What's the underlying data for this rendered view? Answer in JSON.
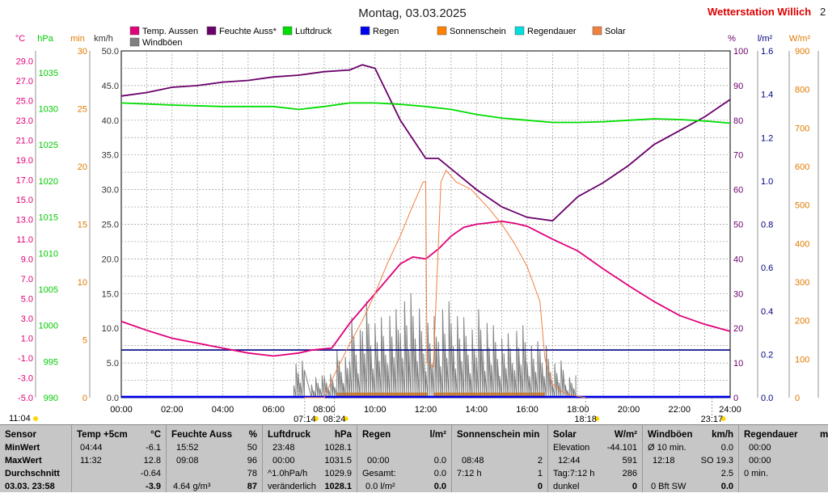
{
  "header": {
    "title": "Montag, 03.03.2025",
    "station": "Wetterstation Willich",
    "right_cut": "2"
  },
  "chart_data": {
    "type": "line",
    "x_range": [
      "00:00",
      "24:00"
    ],
    "x_ticks": [
      "00:00",
      "02:00",
      "04:00",
      "06:00",
      "08:00",
      "10:00",
      "12:00",
      "14:00",
      "16:00",
      "18:00",
      "20:00",
      "22:00",
      "24:00"
    ],
    "axes": {
      "temp": {
        "unit": "°C",
        "min": -5,
        "max": 30,
        "ticks": [
          "-5.0",
          "-3.0",
          "-1.0",
          "1.0",
          "3.0",
          "5.0",
          "7.0",
          "9.0",
          "11.0",
          "13.0",
          "15.0",
          "17.0",
          "19.0",
          "21.0",
          "23.0",
          "25.0",
          "27.0",
          "29.0"
        ],
        "color": "#e0007a"
      },
      "pressure": {
        "unit": "hPa",
        "min": 990,
        "max": 1038,
        "ticks": [
          "990",
          "995",
          "1000",
          "1005",
          "1010",
          "1015",
          "1020",
          "1025",
          "1030",
          "1035"
        ],
        "color": "#00cc00"
      },
      "minutes": {
        "unit": "min",
        "min": 0,
        "max": 30,
        "ticks": [
          "0",
          "5",
          "10",
          "15",
          "20",
          "25",
          "30"
        ],
        "color": "#e07a00"
      },
      "wind": {
        "unit": "km/h",
        "min": 0,
        "max": 50,
        "ticks": [
          "0.0",
          "5.0",
          "10.0",
          "15.0",
          "20.0",
          "25.0",
          "30.0",
          "35.0",
          "40.0",
          "45.0",
          "50.0"
        ],
        "color": "#333333"
      },
      "humidity": {
        "unit": "%",
        "min": 0,
        "max": 100,
        "ticks": [
          "0",
          "10",
          "20",
          "30",
          "40",
          "50",
          "60",
          "70",
          "80",
          "90",
          "100"
        ],
        "color": "#6a006a"
      },
      "rain": {
        "unit": "l/m²",
        "min": 0,
        "max": 1.6,
        "ticks": [
          "0.0",
          "0.2",
          "0.4",
          "0.6",
          "0.8",
          "1.0",
          "1.2",
          "1.4",
          "1.6"
        ],
        "color": "#000080"
      },
      "solar": {
        "unit": "W/m²",
        "min": 0,
        "max": 900,
        "ticks": [
          "0",
          "100",
          "200",
          "300",
          "400",
          "500",
          "600",
          "700",
          "800",
          "900"
        ],
        "color": "#e07a00"
      }
    },
    "legend": [
      {
        "name": "Temp. Aussen",
        "color": "#e0007a"
      },
      {
        "name": "Feuchte Auss*",
        "color": "#6a006a"
      },
      {
        "name": "Luftdruck",
        "color": "#00dd00"
      },
      {
        "name": "Regen",
        "color": "#0000ee"
      },
      {
        "name": "Sonnenschein",
        "color": "#ff8000"
      },
      {
        "name": "Regendauer",
        "color": "#00dddd"
      },
      {
        "name": "Solar",
        "color": "#f08040"
      },
      {
        "name": "Windböen",
        "color": "#808080"
      }
    ],
    "series": [
      {
        "name": "Temp. Aussen",
        "axis": "temp",
        "points": [
          [
            0,
            2.7
          ],
          [
            1,
            1.8
          ],
          [
            2,
            1.0
          ],
          [
            3,
            0.5
          ],
          [
            4,
            0.0
          ],
          [
            5,
            -0.5
          ],
          [
            6,
            -0.8
          ],
          [
            7,
            -0.5
          ],
          [
            7.5,
            -0.2
          ],
          [
            8.3,
            0.0
          ],
          [
            9,
            2.5
          ],
          [
            10,
            5.5
          ],
          [
            11,
            8.5
          ],
          [
            11.5,
            9.2
          ],
          [
            12,
            9.0
          ],
          [
            12.5,
            10.0
          ],
          [
            13,
            11.3
          ],
          [
            13.5,
            12.2
          ],
          [
            14,
            12.5
          ],
          [
            15,
            12.8
          ],
          [
            15.5,
            12.6
          ],
          [
            16,
            12.3
          ],
          [
            17,
            11.0
          ],
          [
            18,
            9.8
          ],
          [
            19,
            8.0
          ],
          [
            20,
            6.3
          ],
          [
            21,
            4.7
          ],
          [
            22,
            3.3
          ],
          [
            23,
            2.4
          ],
          [
            24,
            1.7
          ]
        ]
      },
      {
        "name": "Feuchte Auss*",
        "axis": "humidity",
        "points": [
          [
            0,
            87
          ],
          [
            1,
            88
          ],
          [
            2,
            89.5
          ],
          [
            3,
            90
          ],
          [
            4,
            91
          ],
          [
            5,
            91.5
          ],
          [
            6,
            92.5
          ],
          [
            7,
            93
          ],
          [
            8,
            94
          ],
          [
            9,
            94.5
          ],
          [
            9.5,
            96
          ],
          [
            10,
            95
          ],
          [
            11,
            80
          ],
          [
            12,
            69
          ],
          [
            12.5,
            69
          ],
          [
            13,
            66
          ],
          [
            14,
            60
          ],
          [
            15,
            55
          ],
          [
            16,
            52
          ],
          [
            17,
            51
          ],
          [
            18,
            58
          ],
          [
            19,
            62
          ],
          [
            20,
            67
          ],
          [
            21,
            73
          ],
          [
            22,
            77
          ],
          [
            23,
            81
          ],
          [
            24,
            86
          ]
        ]
      },
      {
        "name": "Luftdruck",
        "axis": "pressure",
        "points": [
          [
            0,
            1030.8
          ],
          [
            2,
            1030.5
          ],
          [
            4,
            1030.3
          ],
          [
            6,
            1030.3
          ],
          [
            7,
            1029.9
          ],
          [
            8,
            1030.3
          ],
          [
            9,
            1030.8
          ],
          [
            10,
            1030.8
          ],
          [
            11,
            1030.6
          ],
          [
            12,
            1030.3
          ],
          [
            13,
            1029.9
          ],
          [
            14,
            1029.2
          ],
          [
            15,
            1028.7
          ],
          [
            16,
            1028.4
          ],
          [
            17,
            1028.1
          ],
          [
            18,
            1028.1
          ],
          [
            19,
            1028.2
          ],
          [
            20,
            1028.4
          ],
          [
            21,
            1028.6
          ],
          [
            22,
            1028.5
          ],
          [
            23,
            1028.3
          ],
          [
            24,
            1028.0
          ]
        ]
      },
      {
        "name": "Solar",
        "axis": "solar",
        "points": [
          [
            7.2,
            0
          ],
          [
            8.0,
            0
          ],
          [
            8.4,
            60
          ],
          [
            9,
            140
          ],
          [
            9.5,
            200
          ],
          [
            10,
            270
          ],
          [
            10.5,
            350
          ],
          [
            11,
            420
          ],
          [
            11.5,
            500
          ],
          [
            11.9,
            560
          ],
          [
            12,
            560
          ],
          [
            12.05,
            90
          ],
          [
            12.3,
            80
          ],
          [
            12.5,
            400
          ],
          [
            12.6,
            560
          ],
          [
            12.8,
            590
          ],
          [
            13.2,
            560
          ],
          [
            13.8,
            540
          ],
          [
            14.5,
            490
          ],
          [
            15,
            450
          ],
          [
            15.5,
            400
          ],
          [
            16,
            340
          ],
          [
            16.5,
            250
          ],
          [
            16.7,
            100
          ],
          [
            17,
            35
          ],
          [
            17.5,
            10
          ],
          [
            18.3,
            0
          ]
        ]
      }
    ],
    "wind_gusts": [
      [
        6.8,
        5
      ],
      [
        7.5,
        3
      ],
      [
        8,
        3.5
      ],
      [
        8.5,
        6
      ],
      [
        9,
        10
      ],
      [
        9.5,
        12
      ],
      [
        10,
        10
      ],
      [
        10.5,
        11
      ],
      [
        11,
        13
      ],
      [
        11.5,
        12
      ],
      [
        12,
        11
      ],
      [
        12.5,
        13
      ],
      [
        13,
        12
      ],
      [
        13.5,
        10
      ],
      [
        14,
        11
      ],
      [
        14.5,
        9
      ],
      [
        15,
        8
      ],
      [
        15.5,
        9
      ],
      [
        16,
        7
      ],
      [
        16.5,
        7
      ],
      [
        17,
        5
      ],
      [
        17.5,
        3
      ]
    ],
    "sunshine_blocks": [
      [
        8.5,
        12.1
      ],
      [
        12.3,
        16.7
      ]
    ],
    "rain_level": 0.22,
    "markers": [
      {
        "label": "07:14",
        "x": 7.23
      },
      {
        "label": "08:24",
        "x": 8.4
      },
      {
        "label": "18:18",
        "x": 18.3
      },
      {
        "label": "23:17",
        "x": 23.28
      }
    ],
    "bottom_left_time": "11:04",
    "grid": true
  },
  "table": {
    "sensor": {
      "header": "Sensor",
      "min": "MinWert",
      "max": "MaxWert",
      "avg": "Durchschnitt",
      "cur": "03.03. 23:58"
    },
    "temp": {
      "header": "Temp +5cm",
      "unit": "°C",
      "min_time": "04:44",
      "min_val": "-6.1",
      "max_time": "11:32",
      "max_val": "12.8",
      "avg_val": "-0.64",
      "cur_val": "-3.9"
    },
    "hum": {
      "header": "Feuchte Auss",
      "unit": "%",
      "min_time": "15:52",
      "min_val": "50",
      "max_time": "09:08",
      "max_val": "96",
      "avg_val": "78",
      "cur_sub": "4.64 g/m³",
      "cur_val": "87"
    },
    "press": {
      "header": "Luftdruck",
      "unit": "hPa",
      "min_time": "23:48",
      "min_val": "1028.1",
      "max_time": "00:00",
      "max_val": "1031.5",
      "avg_lbl": "^1.0hPa/h",
      "avg_val": "1029.9",
      "cur_lbl": "veränderlich",
      "cur_val": "1028.1"
    },
    "rain": {
      "header": "Regen",
      "unit": "l/m²",
      "max_time": "00:00",
      "max_val": "0.0",
      "avg_lbl": "Gesamt:",
      "avg_val": "0.0",
      "cur_lbl": "0.0 l/m²",
      "cur_val": "0.0"
    },
    "sun": {
      "header": "Sonnenschein min",
      "max_time": "08:48",
      "max_val": "2",
      "avg_lbl": "7:12 h",
      "avg_val": "1",
      "cur_val": "0"
    },
    "solar": {
      "header": "Solar",
      "unit": "W/m²",
      "min_lbl": "Elevation",
      "min_val": "-44.101",
      "max_time": "12:44",
      "max_val": "591",
      "avg_lbl": "Tag:7:12 h",
      "avg_val": "286",
      "cur_lbl": "dunkel",
      "cur_val": "0"
    },
    "wind": {
      "header": "Windböen",
      "unit": "km/h",
      "min_lbl": "Ø 10 min.",
      "min_val": "0.0",
      "max_time": "12:18",
      "max_val": "SO 19.3",
      "avg_val": "2.5",
      "cur_lbl": "0 Bft SW",
      "cur_val": "0.0"
    },
    "raindur": {
      "header": "Regendauer",
      "unit": "m",
      "min_time": "00:00",
      "max_time": "00:00",
      "avg_lbl": "0 min."
    }
  }
}
